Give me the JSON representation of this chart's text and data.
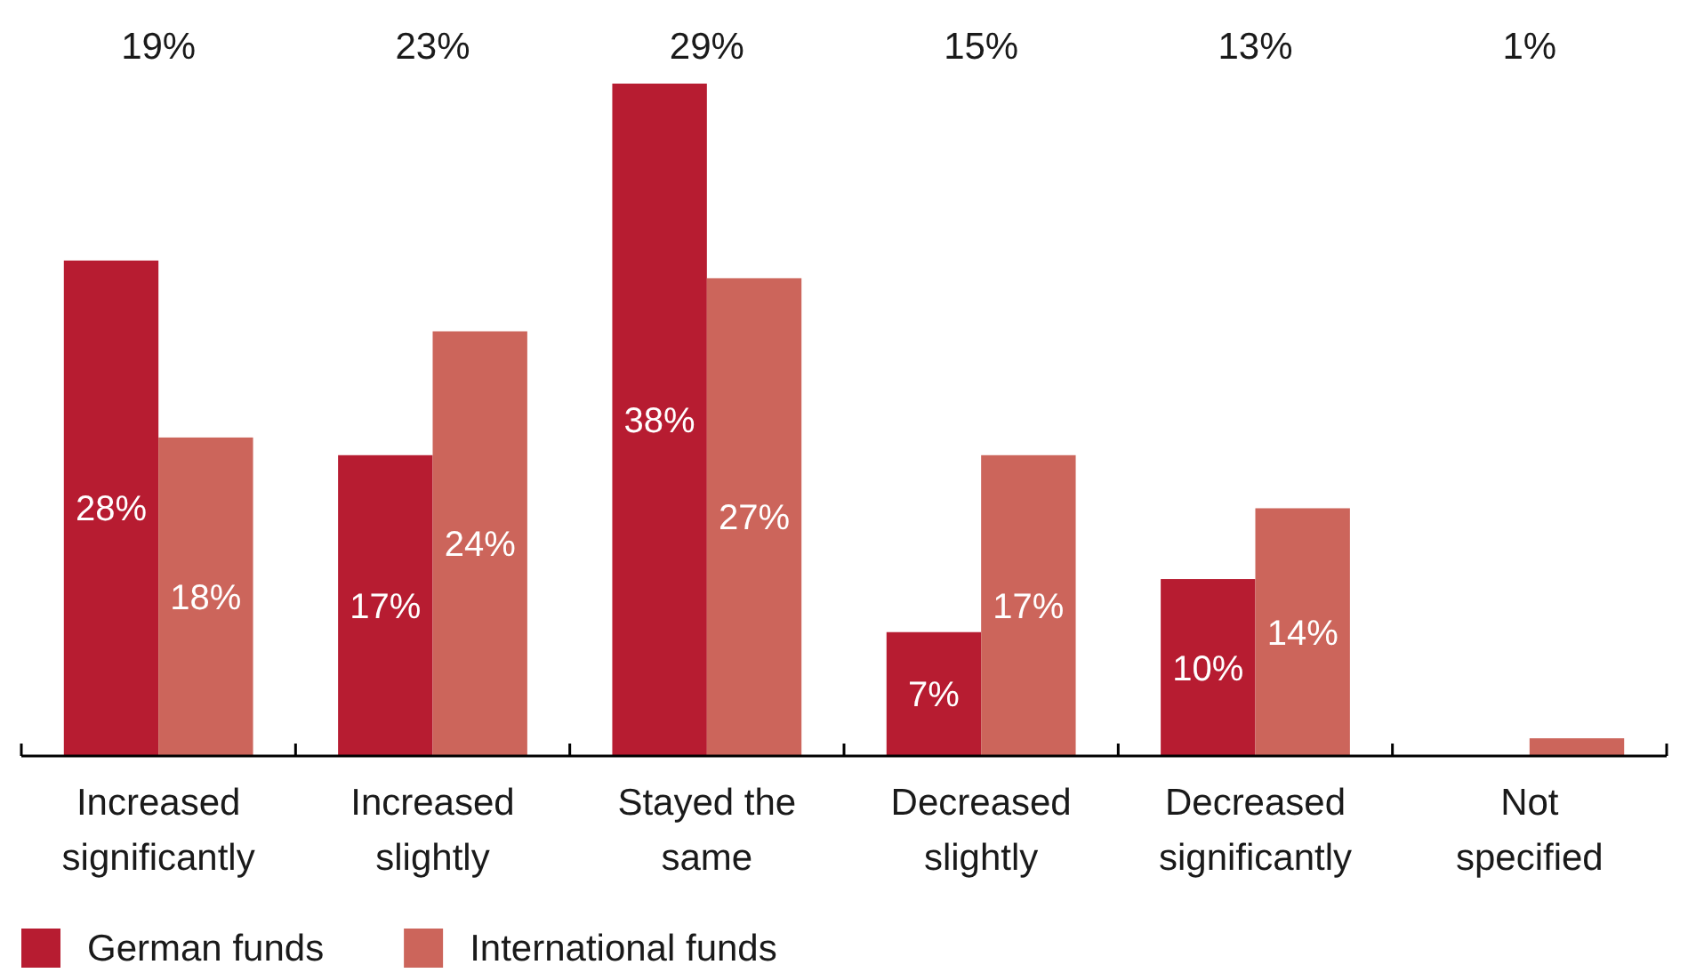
{
  "chart_data": {
    "type": "bar",
    "categories": [
      "Increased significantly",
      "Increased slightly",
      "Stayed the same",
      "Decreased slightly",
      "Decreased significantly",
      "Not specified"
    ],
    "series": [
      {
        "name": "German funds",
        "color": "#b71c31",
        "values": [
          28,
          17,
          38,
          7,
          10,
          0
        ],
        "value_labels": [
          "28%",
          "17%",
          "38%",
          "7%",
          "10%",
          null
        ]
      },
      {
        "name": "International funds",
        "color": "#cc655b",
        "values": [
          18,
          24,
          27,
          17,
          14,
          1
        ],
        "value_labels": [
          "18%",
          "24%",
          "27%",
          "17%",
          "14%",
          null
        ]
      }
    ],
    "annotations": [
      "19%",
      "23%",
      "29%",
      "15%",
      "13%",
      "1%"
    ],
    "legend": "bottom left"
  }
}
